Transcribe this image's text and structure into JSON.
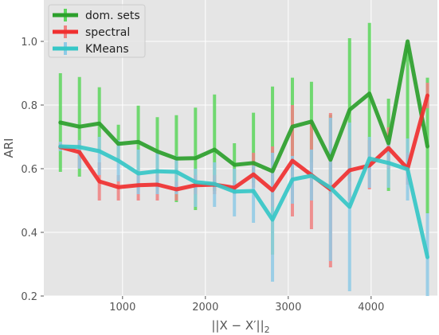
{
  "chart_data": {
    "type": "line",
    "title": "",
    "xlabel": "||X − X′||",
    "xlabel_sub": "2",
    "ylabel": "ARI",
    "xlim": [
      50,
      4800
    ],
    "ylim": [
      0.2,
      1.13
    ],
    "xticks": [
      1000,
      2000,
      3000,
      4000
    ],
    "xtick_labels": [
      "1000",
      "2000",
      "3000",
      "4000"
    ],
    "yticks": [
      0.2,
      0.4,
      0.6,
      0.8,
      1.0
    ],
    "ytick_labels": [
      "0.2",
      "0.4",
      "0.6",
      "0.8",
      "1.0"
    ],
    "grid": true,
    "legend_position": "top-left",
    "x": [
      250,
      480,
      720,
      950,
      1190,
      1420,
      1650,
      1880,
      2110,
      2350,
      2580,
      2810,
      3050,
      3280,
      3510,
      3740,
      3980,
      4210,
      4440,
      4680
    ],
    "series": [
      {
        "name": "dom. sets",
        "color": "#2ca02c",
        "err_color": "#5cd65c",
        "values": [
          0.745,
          0.732,
          0.742,
          0.678,
          0.684,
          0.654,
          0.632,
          0.633,
          0.66,
          0.612,
          0.618,
          0.592,
          0.732,
          0.748,
          0.628,
          0.785,
          0.836,
          0.68,
          1.0,
          0.67
        ],
        "err_low": [
          0.59,
          0.575,
          0.655,
          0.62,
          0.58,
          0.54,
          0.495,
          0.47,
          0.53,
          0.545,
          0.555,
          0.33,
          0.575,
          0.62,
          0.52,
          0.56,
          0.61,
          0.53,
          0.61,
          0.46
        ],
        "err_high": [
          0.9,
          0.888,
          0.856,
          0.738,
          0.798,
          0.762,
          0.768,
          0.792,
          0.833,
          0.68,
          0.776,
          0.858,
          0.886,
          0.873,
          0.77,
          1.01,
          1.058,
          0.82,
          0.99,
          0.886
        ]
      },
      {
        "name": "spectral",
        "color": "#f03030",
        "err_color": "#f08080",
        "values": [
          0.668,
          0.652,
          0.56,
          0.542,
          0.548,
          0.55,
          0.535,
          0.548,
          0.55,
          0.54,
          0.582,
          0.532,
          0.625,
          0.58,
          0.535,
          0.595,
          0.61,
          0.665,
          0.6,
          0.83
        ],
        "err_low": [
          0.66,
          0.6,
          0.5,
          0.5,
          0.5,
          0.5,
          0.5,
          0.52,
          0.52,
          0.52,
          0.54,
          0.48,
          0.45,
          0.41,
          0.29,
          0.5,
          0.535,
          0.6,
          0.55,
          0.79
        ],
        "err_high": [
          0.68,
          0.69,
          0.62,
          0.58,
          0.58,
          0.58,
          0.56,
          0.58,
          0.58,
          0.56,
          0.65,
          0.67,
          0.8,
          0.75,
          0.775,
          0.69,
          0.69,
          0.73,
          0.65,
          0.87
        ]
      },
      {
        "name": "KMeans",
        "color": "#36c7c7",
        "err_color": "#8ecae6",
        "values": [
          0.67,
          0.668,
          0.655,
          0.625,
          0.585,
          0.592,
          0.59,
          0.558,
          0.552,
          0.528,
          0.53,
          0.44,
          0.566,
          0.578,
          0.54,
          0.48,
          0.632,
          0.618,
          0.598,
          0.322
        ],
        "err_low": [
          0.655,
          0.6,
          0.58,
          0.56,
          0.52,
          0.52,
          0.52,
          0.48,
          0.48,
          0.45,
          0.43,
          0.245,
          0.49,
          0.5,
          0.31,
          0.215,
          0.54,
          0.54,
          0.5,
          0.2
        ],
        "err_high": [
          0.685,
          0.69,
          0.7,
          0.69,
          0.66,
          0.66,
          0.64,
          0.6,
          0.62,
          0.6,
          0.61,
          0.65,
          0.64,
          0.66,
          0.76,
          0.745,
          0.7,
          0.7,
          0.695,
          0.46
        ]
      }
    ]
  }
}
